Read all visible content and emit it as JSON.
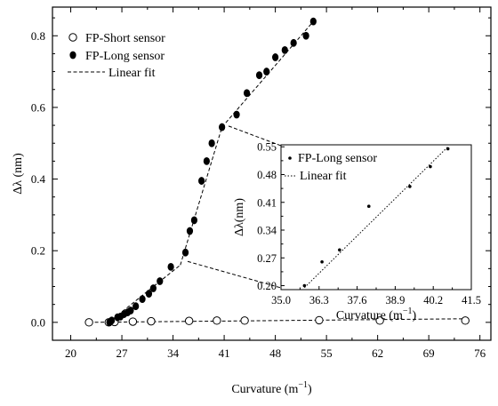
{
  "chart_data": [
    {
      "type": "scatter",
      "title": "",
      "xlabel": "Curvature (m",
      "xlabel_sup": "−1",
      "xlabel_tail": ")",
      "ylabel": "Δλ (nm)",
      "xlim": [
        17.5,
        77.5
      ],
      "ylim": [
        -0.05,
        0.88
      ],
      "xticks": [
        20,
        27,
        34,
        41,
        48,
        55,
        62,
        69,
        76
      ],
      "yticks": [
        0.0,
        0.2,
        0.4,
        0.6,
        0.8
      ],
      "ytick_labels": [
        "0.0",
        "0.2",
        "0.4",
        "0.6",
        "0.8"
      ],
      "grid": false,
      "legend_position": "top-left",
      "series": [
        {
          "name": "FP-Short sensor",
          "marker": "open-circle",
          "x": [
            22.5,
            25.2,
            26.0,
            28.5,
            31.0,
            36.2,
            40.0,
            43.8,
            54.0,
            62.3,
            74.0
          ],
          "y": [
            0.0,
            0.0,
            0.001,
            0.002,
            0.003,
            0.004,
            0.005,
            0.005,
            0.006,
            0.005,
            0.005
          ]
        },
        {
          "name": "FP-Long sensor",
          "marker": "filled-circle",
          "x": [
            25.3,
            25.6,
            26.4,
            26.8,
            27.3,
            27.8,
            28.2,
            28.9,
            29.8,
            30.7,
            31.3,
            32.2,
            33.7,
            35.7,
            36.3,
            36.9,
            37.9,
            38.6,
            39.3,
            40.7,
            42.7,
            44.1,
            45.8,
            46.8,
            48.0,
            49.3,
            50.5,
            52.2,
            53.2
          ],
          "y": [
            0.0,
            0.005,
            0.014,
            0.016,
            0.023,
            0.028,
            0.033,
            0.045,
            0.065,
            0.08,
            0.095,
            0.115,
            0.155,
            0.195,
            0.255,
            0.285,
            0.395,
            0.45,
            0.5,
            0.545,
            0.58,
            0.64,
            0.69,
            0.7,
            0.74,
            0.76,
            0.78,
            0.8,
            0.84
          ]
        },
        {
          "name": "Linear fit",
          "style": "dashed",
          "segments": [
            {
              "x": [
                22.5,
                74.0
              ],
              "y": [
                0.0,
                0.01
              ]
            },
            {
              "x": [
                25.2,
                35.0
              ],
              "y": [
                0.0,
                0.16
              ]
            },
            {
              "x": [
                35.0,
                40.7
              ],
              "y": [
                0.16,
                0.545
              ]
            },
            {
              "x": [
                40.7,
                53.2
              ],
              "y": [
                0.545,
                0.84
              ]
            }
          ]
        }
      ]
    },
    {
      "type": "scatter",
      "role": "inset",
      "title": "",
      "xlabel": "Curvature (m",
      "xlabel_sup": "−1",
      "xlabel_tail": ")",
      "ylabel": "Δλ(nm)",
      "xlim": [
        35.0,
        41.5
      ],
      "ylim": [
        0.19,
        0.555
      ],
      "xticks": [
        35.0,
        36.3,
        37.6,
        38.9,
        40.2,
        41.5
      ],
      "xtick_labels": [
        "35.0",
        "36.3",
        "37.6",
        "38.9",
        "40.2",
        "41.5"
      ],
      "yticks": [
        0.2,
        0.27,
        0.34,
        0.41,
        0.48,
        0.55
      ],
      "ytick_labels": [
        "0.20",
        "0.27",
        "0.34",
        "0.41",
        "0.48",
        "0.55"
      ],
      "grid": false,
      "legend_position": "top-left",
      "series": [
        {
          "name": "FP-Long sensor",
          "marker": "small-dot",
          "x": [
            35.8,
            36.4,
            37.0,
            38.0,
            39.4,
            40.1,
            40.7
          ],
          "y": [
            0.2,
            0.26,
            0.29,
            0.4,
            0.45,
            0.5,
            0.545
          ]
        },
        {
          "name": "Linear fit",
          "style": "dotted",
          "x": [
            35.8,
            40.7
          ],
          "y": [
            0.195,
            0.55
          ]
        }
      ]
    }
  ]
}
